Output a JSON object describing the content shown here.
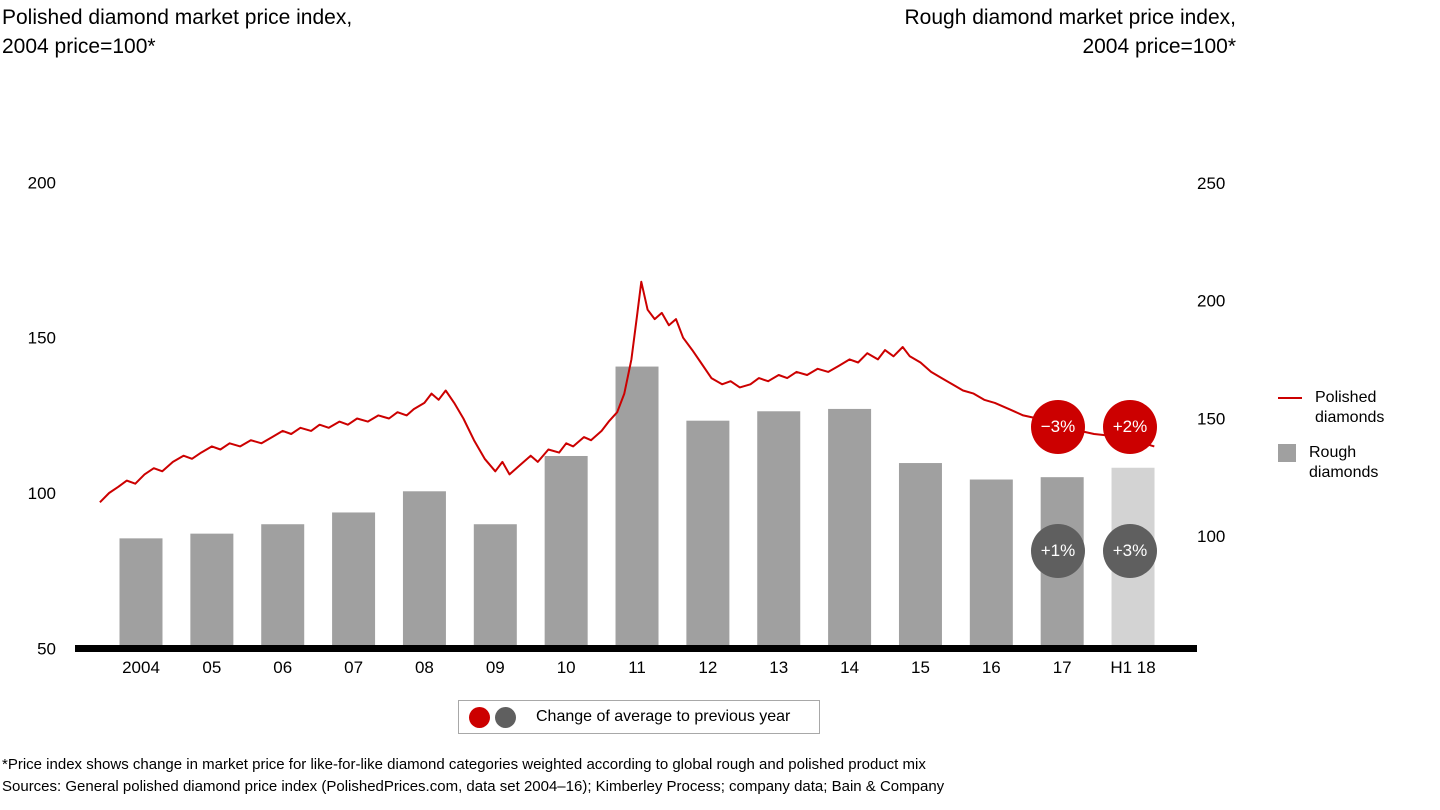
{
  "titles": {
    "left": "Polished diamond market price index,\n2004 price=100*",
    "right": "Rough diamond market price index,\n2004 price=100*"
  },
  "chart_data": {
    "type": "combo-bar-line",
    "categories": [
      "2004",
      "05",
      "06",
      "07",
      "08",
      "09",
      "10",
      "11",
      "12",
      "13",
      "14",
      "15",
      "16",
      "17",
      "H1 18"
    ],
    "bar_series": {
      "name": "Rough diamonds",
      "axis": "right",
      "values": [
        99,
        101,
        105,
        110,
        119,
        105,
        134,
        172,
        149,
        153,
        154,
        131,
        124,
        125,
        129
      ],
      "highlight_index": 14
    },
    "line_series": {
      "name": "Polished diamonds",
      "axis": "left",
      "points": [
        [
          -0.58,
          97
        ],
        [
          -0.45,
          100
        ],
        [
          -0.32,
          102
        ],
        [
          -0.2,
          104
        ],
        [
          -0.08,
          103
        ],
        [
          0.05,
          106
        ],
        [
          0.18,
          108
        ],
        [
          0.3,
          107
        ],
        [
          0.45,
          110
        ],
        [
          0.6,
          112
        ],
        [
          0.72,
          111
        ],
        [
          0.85,
          113
        ],
        [
          1.0,
          115
        ],
        [
          1.12,
          114
        ],
        [
          1.25,
          116
        ],
        [
          1.4,
          115
        ],
        [
          1.55,
          117
        ],
        [
          1.7,
          116
        ],
        [
          1.85,
          118
        ],
        [
          2.0,
          120
        ],
        [
          2.12,
          119
        ],
        [
          2.25,
          121
        ],
        [
          2.4,
          120
        ],
        [
          2.52,
          122
        ],
        [
          2.65,
          121
        ],
        [
          2.8,
          123
        ],
        [
          2.92,
          122
        ],
        [
          3.05,
          124
        ],
        [
          3.2,
          123
        ],
        [
          3.35,
          125
        ],
        [
          3.5,
          124
        ],
        [
          3.62,
          126
        ],
        [
          3.75,
          125
        ],
        [
          3.85,
          127
        ],
        [
          4.0,
          129
        ],
        [
          4.1,
          132
        ],
        [
          4.2,
          130
        ],
        [
          4.3,
          133
        ],
        [
          4.42,
          129
        ],
        [
          4.55,
          124
        ],
        [
          4.7,
          117
        ],
        [
          4.85,
          111
        ],
        [
          5.0,
          107
        ],
        [
          5.1,
          110
        ],
        [
          5.2,
          106
        ],
        [
          5.35,
          109
        ],
        [
          5.5,
          112
        ],
        [
          5.6,
          110
        ],
        [
          5.75,
          114
        ],
        [
          5.9,
          113
        ],
        [
          6.0,
          116
        ],
        [
          6.1,
          115
        ],
        [
          6.25,
          118
        ],
        [
          6.35,
          117
        ],
        [
          6.5,
          120
        ],
        [
          6.6,
          123
        ],
        [
          6.72,
          126
        ],
        [
          6.82,
          132
        ],
        [
          6.92,
          143
        ],
        [
          7.0,
          157
        ],
        [
          7.06,
          168
        ],
        [
          7.15,
          159
        ],
        [
          7.25,
          156
        ],
        [
          7.35,
          158
        ],
        [
          7.45,
          154
        ],
        [
          7.55,
          156
        ],
        [
          7.65,
          150
        ],
        [
          7.78,
          146
        ],
        [
          7.9,
          142
        ],
        [
          8.05,
          137
        ],
        [
          8.2,
          135
        ],
        [
          8.32,
          136
        ],
        [
          8.45,
          134
        ],
        [
          8.6,
          135
        ],
        [
          8.72,
          137
        ],
        [
          8.85,
          136
        ],
        [
          9.0,
          138
        ],
        [
          9.12,
          137
        ],
        [
          9.25,
          139
        ],
        [
          9.4,
          138
        ],
        [
          9.55,
          140
        ],
        [
          9.7,
          139
        ],
        [
          9.85,
          141
        ],
        [
          10.0,
          143
        ],
        [
          10.12,
          142
        ],
        [
          10.25,
          145
        ],
        [
          10.4,
          143
        ],
        [
          10.5,
          146
        ],
        [
          10.62,
          144
        ],
        [
          10.75,
          147
        ],
        [
          10.85,
          144
        ],
        [
          11.0,
          142
        ],
        [
          11.15,
          139
        ],
        [
          11.3,
          137
        ],
        [
          11.45,
          135
        ],
        [
          11.6,
          133
        ],
        [
          11.75,
          132
        ],
        [
          11.9,
          130
        ],
        [
          12.05,
          129
        ],
        [
          12.25,
          127
        ],
        [
          12.45,
          125
        ],
        [
          12.65,
          124
        ],
        [
          12.85,
          122
        ],
        [
          13.05,
          121
        ],
        [
          13.25,
          120
        ],
        [
          13.45,
          119
        ],
        [
          13.65,
          118.5
        ],
        [
          13.85,
          118
        ],
        [
          14.0,
          117
        ],
        [
          14.15,
          116
        ],
        [
          14.3,
          115
        ]
      ]
    },
    "left_axis": {
      "ticks": [
        50,
        100,
        150,
        200
      ],
      "base_value": 50
    },
    "right_axis": {
      "ticks": [
        100,
        150,
        200,
        250
      ]
    },
    "badges": {
      "polished_2017": "−3%",
      "polished_h1_2018": "+2%",
      "rough_2017": "+1%",
      "rough_h1_2018": "+3%"
    },
    "legend": {
      "line": "Polished diamonds",
      "bar": "Rough diamonds"
    },
    "change_legend": "Change of average to previous year",
    "colors": {
      "red": "#cc0000",
      "bar_gray": "#a0a0a0",
      "bar_light": "#d3d3d3",
      "badge_dark": "#5f5f5f"
    }
  },
  "footnotes": [
    "*Price index shows change in market price for like-for-like diamond categories weighted according to global rough and polished product mix",
    "Sources: General polished diamond price index (PolishedPrices.com, data set 2004–16); Kimberley Process; company data; Bain & Company"
  ]
}
